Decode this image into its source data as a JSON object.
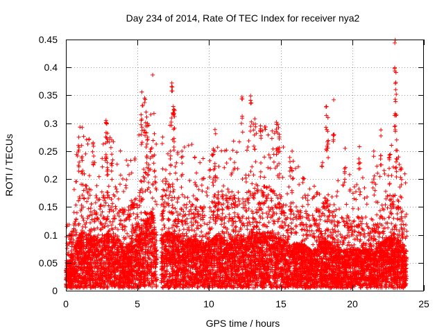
{
  "chart_data": {
    "type": "scatter",
    "title": "Day 234 of 2014, Rate Of TEC Index for receiver nya2",
    "xlabel": "GPS time / hours",
    "ylabel": "ROTI / TECUs",
    "xlim": [
      0,
      25
    ],
    "ylim": [
      0,
      0.45
    ],
    "xticks": [
      0,
      5,
      10,
      15,
      20,
      25
    ],
    "yticks": [
      0,
      0.05,
      0.1,
      0.15,
      0.2,
      0.25,
      0.3,
      0.35,
      0.4,
      0.45
    ],
    "xtick_labels": [
      "0",
      "5",
      "10",
      "15",
      "20",
      "25"
    ],
    "ytick_labels": [
      "0",
      "0.05",
      "0.1",
      "0.15",
      "0.2",
      "0.25",
      "0.3",
      "0.35",
      "0.4",
      "0.45"
    ],
    "grid": true,
    "marker": "+",
    "color": "#ff0000",
    "series": [
      {
        "name": "ROTI",
        "x_range": [
          0,
          23.8
        ],
        "gap": [
          6.35,
          6.65
        ],
        "envelope": [
          [
            0.0,
            0.04
          ],
          [
            0.5,
            0.07
          ],
          [
            1.0,
            0.1
          ],
          [
            1.5,
            0.1
          ],
          [
            2.0,
            0.09
          ],
          [
            2.5,
            0.09
          ],
          [
            3.0,
            0.1
          ],
          [
            3.5,
            0.09
          ],
          [
            4.0,
            0.08
          ],
          [
            4.5,
            0.08
          ],
          [
            5.0,
            0.09
          ],
          [
            5.5,
            0.12
          ],
          [
            6.0,
            0.14
          ],
          [
            6.3,
            0.1
          ],
          [
            6.7,
            0.09
          ],
          [
            7.0,
            0.11
          ],
          [
            7.5,
            0.1
          ],
          [
            8.0,
            0.09
          ],
          [
            8.5,
            0.09
          ],
          [
            9.0,
            0.09
          ],
          [
            9.5,
            0.08
          ],
          [
            10.0,
            0.08
          ],
          [
            10.5,
            0.1
          ],
          [
            11.0,
            0.09
          ],
          [
            11.5,
            0.09
          ],
          [
            12.0,
            0.09
          ],
          [
            12.5,
            0.09
          ],
          [
            13.0,
            0.1
          ],
          [
            13.5,
            0.1
          ],
          [
            14.0,
            0.1
          ],
          [
            14.5,
            0.1
          ],
          [
            15.0,
            0.09
          ],
          [
            15.5,
            0.08
          ],
          [
            16.0,
            0.08
          ],
          [
            16.5,
            0.08
          ],
          [
            17.0,
            0.07
          ],
          [
            17.5,
            0.07
          ],
          [
            18.0,
            0.09
          ],
          [
            18.5,
            0.08
          ],
          [
            19.0,
            0.07
          ],
          [
            19.5,
            0.07
          ],
          [
            20.0,
            0.07
          ],
          [
            20.5,
            0.07
          ],
          [
            21.0,
            0.07
          ],
          [
            21.5,
            0.07
          ],
          [
            22.0,
            0.08
          ],
          [
            22.5,
            0.09
          ],
          [
            23.0,
            0.09
          ],
          [
            23.5,
            0.08
          ],
          [
            23.8,
            0.07
          ]
        ],
        "spikes": [
          [
            0.9,
            0.275
          ],
          [
            1.1,
            0.26
          ],
          [
            1.9,
            0.265
          ],
          [
            2.8,
            0.305
          ],
          [
            2.85,
            0.3
          ],
          [
            2.9,
            0.282
          ],
          [
            3.2,
            0.27
          ],
          [
            5.3,
            0.356
          ],
          [
            5.5,
            0.345
          ],
          [
            5.6,
            0.32
          ],
          [
            5.7,
            0.3
          ],
          [
            7.4,
            0.372
          ],
          [
            7.5,
            0.33
          ],
          [
            7.55,
            0.325
          ],
          [
            7.3,
            0.25
          ],
          [
            8.1,
            0.25
          ],
          [
            10.3,
            0.254
          ],
          [
            10.4,
            0.25
          ],
          [
            12.3,
            0.347
          ],
          [
            12.9,
            0.349
          ],
          [
            13.2,
            0.308
          ],
          [
            13.6,
            0.29
          ],
          [
            14.7,
            0.302
          ],
          [
            14.8,
            0.298
          ],
          [
            14.9,
            0.28
          ],
          [
            15.8,
            0.25
          ],
          [
            18.2,
            0.33
          ],
          [
            18.3,
            0.31
          ],
          [
            18.7,
            0.342
          ],
          [
            19.5,
            0.255
          ],
          [
            20.5,
            0.258
          ],
          [
            21.5,
            0.25
          ],
          [
            22.0,
            0.288
          ],
          [
            22.6,
            0.243
          ],
          [
            23.0,
            0.449
          ],
          [
            23.05,
            0.391
          ],
          [
            23.0,
            0.343
          ],
          [
            23.1,
            0.27
          ],
          [
            23.4,
            0.22
          ]
        ]
      }
    ]
  }
}
